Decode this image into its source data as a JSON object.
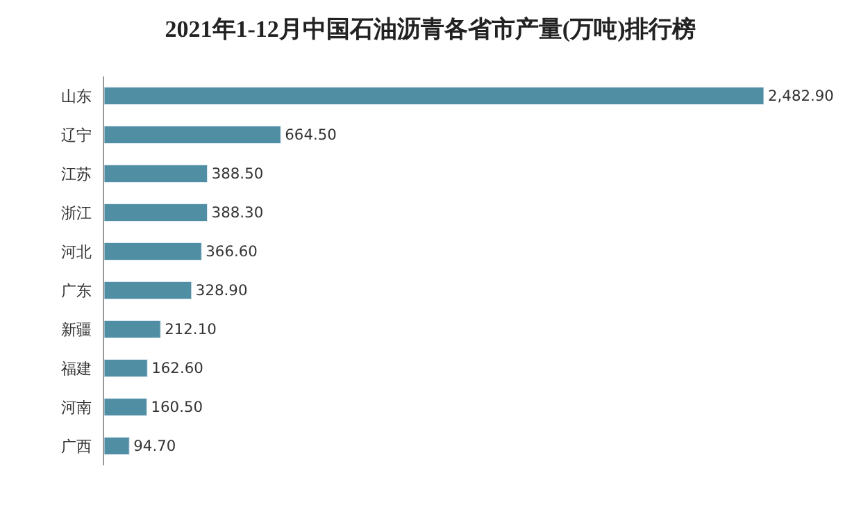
{
  "chart_data": {
    "type": "bar",
    "orientation": "horizontal",
    "title": "2021年1-12月中国石油沥青各省市产量(万吨)排行榜",
    "categories": [
      "山东",
      "辽宁",
      "江苏",
      "浙江",
      "河北",
      "广东",
      "新疆",
      "福建",
      "河南",
      "广西"
    ],
    "values": [
      2482.9,
      664.5,
      388.5,
      388.3,
      366.6,
      328.9,
      212.1,
      162.6,
      160.5,
      94.7
    ],
    "value_labels": [
      "2,482.90",
      "664.50",
      "388.50",
      "388.30",
      "366.60",
      "328.90",
      "212.10",
      "162.60",
      "160.50",
      "94.70"
    ],
    "color": "#4f8ea3"
  }
}
